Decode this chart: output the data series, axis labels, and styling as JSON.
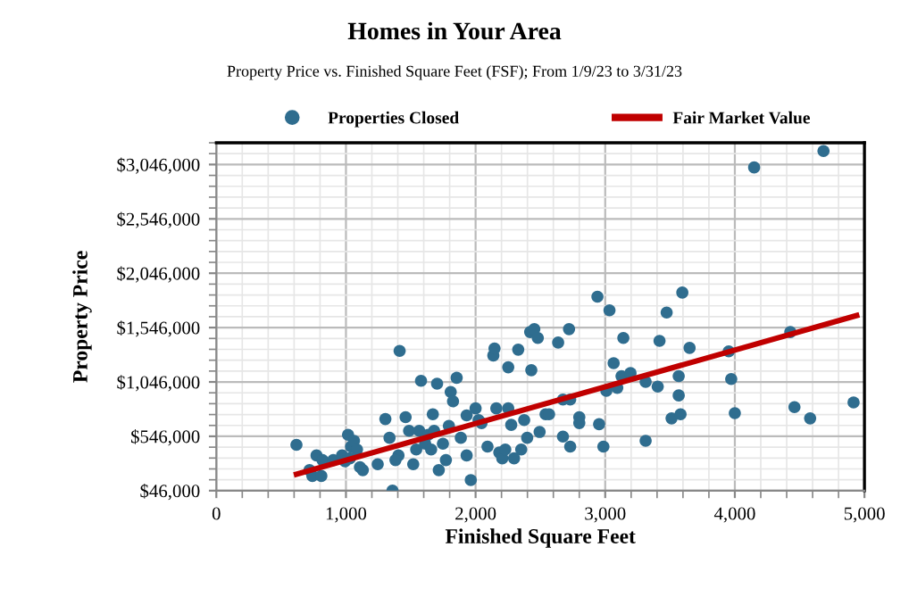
{
  "chart_data": {
    "type": "scatter",
    "title": "Homes in Your Area",
    "subtitle": "Property Price vs. Finished Square Feet (FSF); From 1/9/23 to 3/31/23",
    "xlabel": "Finished Square Feet",
    "ylabel": "Property Price",
    "series": [
      {
        "name": "Properties Closed",
        "color": "#2f6d8f",
        "marker": "circle",
        "x": [
          618,
          719,
          741,
          810,
          773,
          819,
          902,
          970,
          1016,
          1039,
          1062,
          1085,
          1108,
          1130,
          1030,
          993,
          1245,
          1304,
          1336,
          1359,
          1405,
          1382,
          1414,
          1460,
          1487,
          1519,
          1542,
          1565,
          1579,
          1611,
          1634,
          1657,
          1680,
          1703,
          1716,
          1748,
          1771,
          1794,
          1670,
          1808,
          1826,
          1854,
          1886,
          1931,
          1963,
          1931,
          2000,
          2023,
          2046,
          2092,
          2137,
          2146,
          2160,
          2183,
          2206,
          2229,
          2252,
          2275,
          2252,
          2297,
          2329,
          2352,
          2398,
          2375,
          2421,
          2453,
          2480,
          2430,
          2494,
          2540,
          2567,
          2674,
          2637,
          2721,
          2730,
          2674,
          2730,
          2800,
          2800,
          2940,
          2953,
          2986,
          3009,
          3033,
          3065,
          3093,
          3126,
          3140,
          3195,
          3312,
          3312,
          3405,
          3419,
          3474,
          3512,
          3567,
          3567,
          3581,
          3595,
          3651,
          3953,
          3972,
          4000,
          4149,
          4428,
          4460,
          4581,
          4684,
          4916
        ],
        "values": [
          468000,
          235000,
          181000,
          181000,
          370000,
          327000,
          327000,
          370000,
          560000,
          451000,
          505000,
          424000,
          262000,
          235000,
          343000,
          316000,
          289000,
          705000,
          532000,
          46000,
          370000,
          327000,
          1332000,
          722000,
          597000,
          289000,
          424000,
          597000,
          1057000,
          478000,
          560000,
          424000,
          597000,
          1030000,
          235000,
          478000,
          327000,
          641000,
          749000,
          954000,
          868000,
          1084000,
          532000,
          370000,
          143000,
          738000,
          803000,
          695000,
          668000,
          451000,
          1289000,
          1354000,
          803000,
          397000,
          343000,
          424000,
          803000,
          651000,
          1181000,
          343000,
          1343000,
          424000,
          532000,
          695000,
          1505000,
          1532000,
          1451000,
          1154000,
          586000,
          749000,
          749000,
          543000,
          1408000,
          1532000,
          451000,
          884000,
          884000,
          722000,
          668000,
          1830000,
          657000,
          451000,
          965000,
          1705000,
          1219000,
          992000,
          1100000,
          1451000,
          1127000,
          505000,
          1046000,
          1003000,
          1424000,
          1684000,
          711000,
          1100000,
          922000,
          749000,
          1868000,
          1359000,
          1327000,
          1073000,
          759000,
          3019000,
          1505000,
          814000,
          711000,
          3170000,
          857000
        ]
      },
      {
        "name": "Fair Market Value",
        "type": "line",
        "color": "#c00000",
        "line_style": "solid",
        "marker": "none",
        "x": [
          618,
          4940
        ],
        "values": [
          197000,
          1657000
        ]
      }
    ],
    "xlim": [
      0,
      5000
    ],
    "xticks": [
      0,
      {
        "value": 1000,
        "label": "1,000"
      },
      {
        "value": 2000,
        "label": "2,000"
      },
      {
        "value": 3000,
        "label": "3,000"
      },
      {
        "value": 4000,
        "label": "4,000"
      },
      {
        "value": 5000,
        "label": "5,000"
      }
    ],
    "ylim": [
      46000,
      3246000
    ],
    "yticks": [
      {
        "value": 46000,
        "label": "$46,000"
      },
      {
        "value": 546000,
        "label": "$546,000"
      },
      {
        "value": 1046000,
        "label": "$1,046,000"
      },
      {
        "value": 1546000,
        "label": "$1,546,000"
      },
      {
        "value": 2046000,
        "label": "$2,046,000"
      },
      {
        "value": 2546000,
        "label": "$2,546,000"
      },
      {
        "value": 3046000,
        "label": "$3,046,000"
      }
    ],
    "grid": true,
    "legend": "top"
  }
}
